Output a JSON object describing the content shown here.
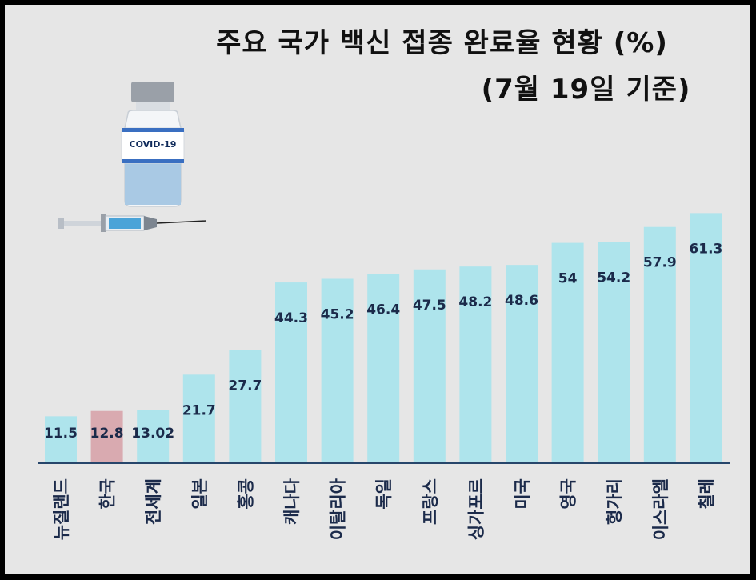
{
  "title": "주요 국가 백신 접종 완료율 현황 (%)",
  "subtitle": "(7월 19일 기준)",
  "illustration": {
    "vial_label": "COVID-19",
    "icons": [
      "vaccine-vial-icon",
      "syringe-icon"
    ]
  },
  "colors": {
    "bar": "#aee4ec",
    "highlight_bar": "#d9aab0",
    "axis": "#27466b",
    "background": "#e6e6e6",
    "border": "#000000"
  },
  "chart_data": {
    "type": "bar",
    "title": "주요 국가 백신 접종 완료율 현황 (%)",
    "subtitle": "(7월 19일 기준)",
    "categories": [
      "뉴질랜드",
      "한국",
      "전세계",
      "일본",
      "홍콩",
      "캐나다",
      "이탈리아",
      "독일",
      "프랑스",
      "싱가포르",
      "미국",
      "영국",
      "헝가리",
      "이스라엘",
      "칠레"
    ],
    "values": [
      11.5,
      12.8,
      13.02,
      21.7,
      27.7,
      44.3,
      45.2,
      46.4,
      47.5,
      48.2,
      48.6,
      54,
      54.2,
      57.9,
      61.3
    ],
    "data_labels": [
      "11.5",
      "12.8",
      "13.02",
      "21.7",
      "27.7",
      "44.3",
      "45.2",
      "46.4",
      "47.5",
      "48.2",
      "48.6",
      "54",
      "54.2",
      "57.9",
      "61.3"
    ],
    "highlight": "한국",
    "xlabel": "",
    "ylabel": "",
    "ylim": [
      0,
      80
    ],
    "grid": false,
    "legend": "none"
  }
}
